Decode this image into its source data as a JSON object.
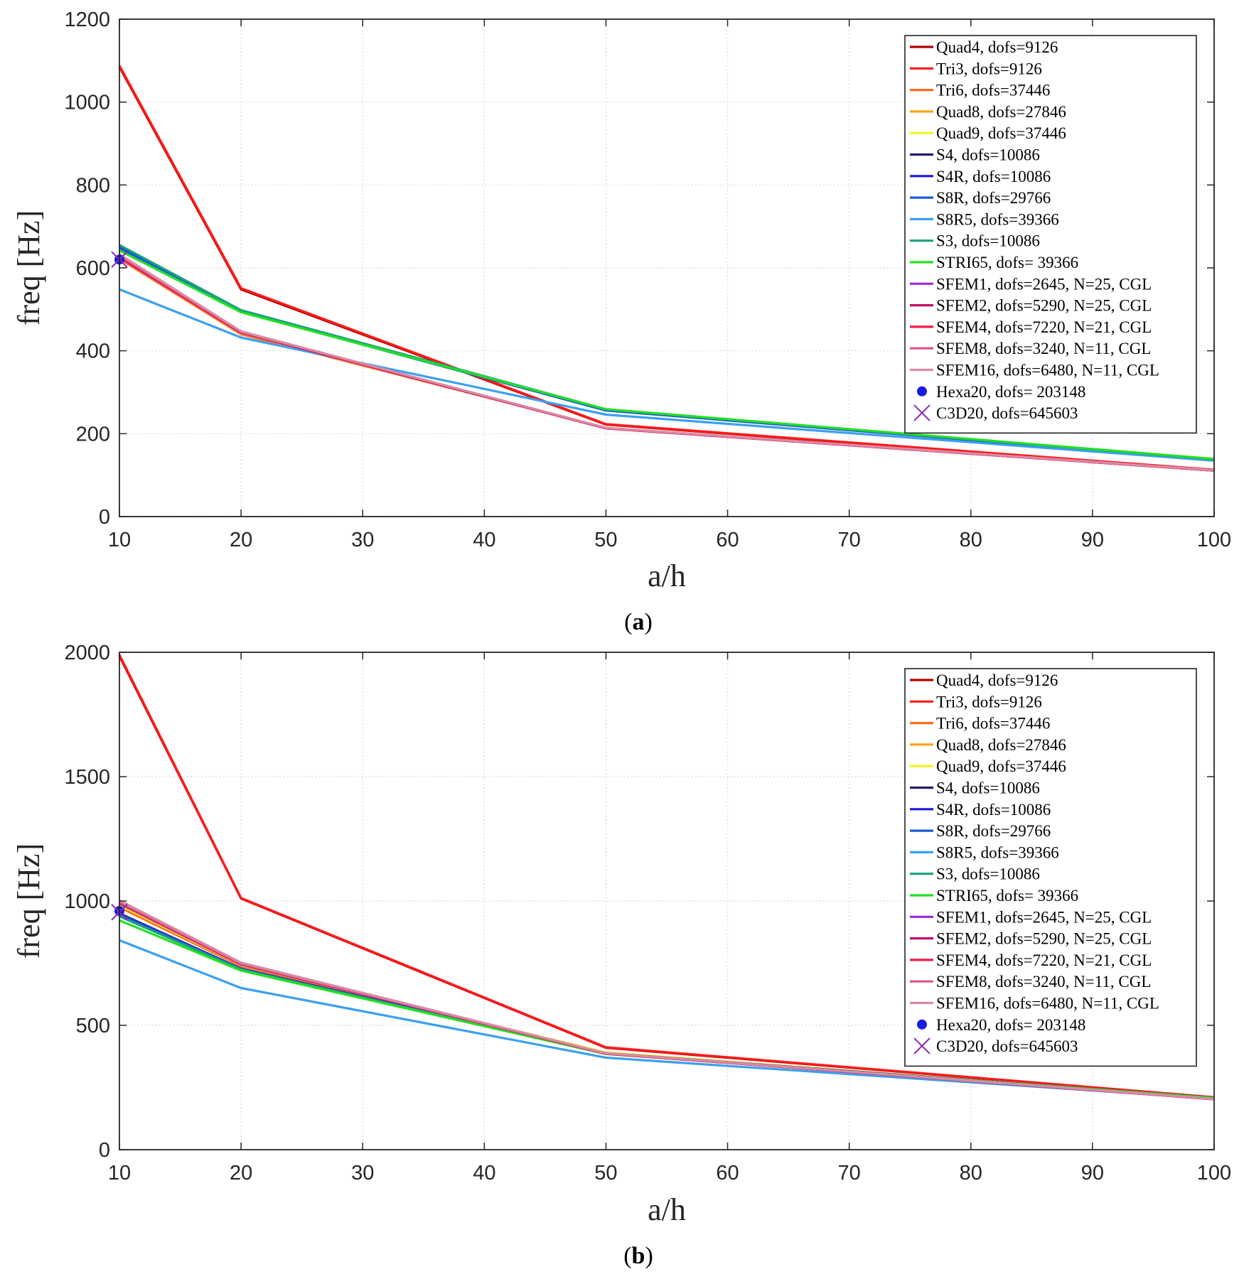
{
  "series_styles": [
    {
      "name": "Quad4, dofs=9126",
      "color": "#b00000",
      "kind": "line"
    },
    {
      "name": "Tri3, dofs=9126",
      "color": "#ff1a1a",
      "kind": "line"
    },
    {
      "name": "Tri6, dofs=37446",
      "color": "#ff6a1a",
      "kind": "line"
    },
    {
      "name": "Quad8, dofs=27846",
      "color": "#ffa51a",
      "kind": "line"
    },
    {
      "name": "Quad9, dofs=37446",
      "color": "#f2f21a",
      "kind": "line"
    },
    {
      "name": "S4, dofs=10086",
      "color": "#2a1a6e",
      "kind": "line"
    },
    {
      "name": "S4R, dofs=10086",
      "color": "#1a1ad6",
      "kind": "line"
    },
    {
      "name": "S8R, dofs=29766",
      "color": "#1a5ad6",
      "kind": "line"
    },
    {
      "name": "S8R5, dofs=39366",
      "color": "#3aa0f0",
      "kind": "line"
    },
    {
      "name": "S3, dofs=10086",
      "color": "#1aa080",
      "kind": "line"
    },
    {
      "name": "STRI65, dofs= 39366",
      "color": "#22e022",
      "kind": "line"
    },
    {
      "name": "SFEM1, dofs=2645, N=25, CGL",
      "color": "#9a2ad6",
      "kind": "line"
    },
    {
      "name": "SFEM2, dofs=5290, N=25, CGL",
      "color": "#c0106a",
      "kind": "line"
    },
    {
      "name": "SFEM4, dofs=7220, N=21, CGL",
      "color": "#f01a4a",
      "kind": "line"
    },
    {
      "name": "SFEM8, dofs=3240, N=11, CGL",
      "color": "#e0508a",
      "kind": "line"
    },
    {
      "name": "SFEM16, dofs=6480, N=11, CGL",
      "color": "#d88aa6",
      "kind": "line"
    },
    {
      "name": "Hexa20, dofs= 203148",
      "color": "#1a1ae0",
      "kind": "dot"
    },
    {
      "name": "C3D20, dofs=645603",
      "color": "#8a2ab0",
      "kind": "cross"
    }
  ],
  "chart_data": [
    {
      "type": "line",
      "caption_letter": "a",
      "title": "",
      "xlabel": "a/h",
      "ylabel": "freq [Hz]",
      "xlim": [
        10,
        100
      ],
      "ylim": [
        0,
        1200
      ],
      "xticks": [
        10,
        20,
        30,
        40,
        50,
        60,
        70,
        80,
        90,
        100
      ],
      "yticks": [
        0,
        200,
        400,
        600,
        800,
        1000,
        1200
      ],
      "grid": true,
      "legend_position": "top-right",
      "x": [
        10,
        20,
        50,
        100
      ],
      "series": [
        {
          "name": "Quad4, dofs=9126",
          "values": [
            1085,
            548,
            222,
            112
          ]
        },
        {
          "name": "Tri3, dofs=9126",
          "values": [
            1088,
            551,
            223,
            113
          ]
        },
        {
          "name": "Tri6, dofs=37446",
          "values": [
            622,
            440,
            214,
            111
          ]
        },
        {
          "name": "Quad8, dofs=27846",
          "values": [
            630,
            443,
            214,
            111
          ]
        },
        {
          "name": "Quad9, dofs=37446",
          "values": [
            632,
            444,
            214,
            111
          ]
        },
        {
          "name": "S4, dofs=10086",
          "values": [
            652,
            496,
            258,
            138
          ]
        },
        {
          "name": "S4R, dofs=10086",
          "values": [
            650,
            495,
            257,
            137
          ]
        },
        {
          "name": "S8R, dofs=29766",
          "values": [
            648,
            494,
            256,
            137
          ]
        },
        {
          "name": "S8R5, dofs=39366",
          "values": [
            548,
            432,
            246,
            135
          ]
        },
        {
          "name": "S3, dofs=10086",
          "values": [
            655,
            498,
            259,
            138
          ]
        },
        {
          "name": "STRI65, dofs= 39366",
          "values": [
            642,
            493,
            259,
            139
          ]
        },
        {
          "name": "SFEM1, dofs=2645, N=25, CGL",
          "values": [
            626,
            444,
            213,
            111
          ]
        },
        {
          "name": "SFEM2, dofs=5290, N=25, CGL",
          "values": [
            627,
            444,
            213,
            111
          ]
        },
        {
          "name": "SFEM4, dofs=7220, N=21, CGL",
          "values": [
            628,
            445,
            213,
            111
          ]
        },
        {
          "name": "SFEM8, dofs=3240, N=11, CGL",
          "values": [
            630,
            446,
            214,
            111
          ]
        },
        {
          "name": "SFEM16, dofs=6480, N=11, CGL",
          "values": [
            633,
            447,
            214,
            112
          ]
        },
        {
          "name": "Hexa20, dofs= 203148",
          "points": [
            [
              10,
              620
            ]
          ]
        },
        {
          "name": "C3D20, dofs=645603",
          "points": [
            [
              10,
              620
            ]
          ]
        }
      ]
    },
    {
      "type": "line",
      "caption_letter": "b",
      "title": "",
      "xlabel": "a/h",
      "ylabel": "freq [Hz]",
      "xlim": [
        10,
        100
      ],
      "ylim": [
        0,
        2000
      ],
      "xticks": [
        10,
        20,
        30,
        40,
        50,
        60,
        70,
        80,
        90,
        100
      ],
      "yticks": [
        0,
        500,
        1000,
        1500,
        2000
      ],
      "grid": true,
      "legend_position": "top-right",
      "x": [
        10,
        20,
        50,
        100
      ],
      "series": [
        {
          "name": "Quad4, dofs=9126",
          "values": [
            1985,
            1010,
            410,
            210
          ]
        },
        {
          "name": "Tri3, dofs=9126",
          "values": [
            1990,
            1012,
            412,
            211
          ]
        },
        {
          "name": "Tri6, dofs=37446",
          "values": [
            975,
            738,
            390,
            207
          ]
        },
        {
          "name": "Quad8, dofs=27846",
          "values": [
            982,
            742,
            390,
            207
          ]
        },
        {
          "name": "Quad9, dofs=37446",
          "values": [
            985,
            744,
            391,
            207
          ]
        },
        {
          "name": "S4, dofs=10086",
          "values": [
            950,
            728,
            388,
            208
          ]
        },
        {
          "name": "S4R, dofs=10086",
          "values": [
            948,
            727,
            387,
            208
          ]
        },
        {
          "name": "S8R, dofs=29766",
          "values": [
            945,
            726,
            386,
            208
          ]
        },
        {
          "name": "S8R5, dofs=39366",
          "values": [
            842,
            650,
            370,
            205
          ]
        },
        {
          "name": "S3, dofs=10086",
          "values": [
            938,
            725,
            386,
            208
          ]
        },
        {
          "name": "STRI65, dofs= 39366",
          "values": [
            922,
            720,
            385,
            208
          ]
        },
        {
          "name": "SFEM1, dofs=2645, N=25, CGL",
          "values": [
            990,
            745,
            386,
            203
          ]
        },
        {
          "name": "SFEM2, dofs=5290, N=25, CGL",
          "values": [
            992,
            746,
            386,
            203
          ]
        },
        {
          "name": "SFEM4, dofs=7220, N=21, CGL",
          "values": [
            994,
            747,
            386,
            203
          ]
        },
        {
          "name": "SFEM8, dofs=3240, N=11, CGL",
          "values": [
            996,
            748,
            387,
            203
          ]
        },
        {
          "name": "SFEM16, dofs=6480, N=11, CGL",
          "values": [
            1002,
            752,
            388,
            204
          ]
        },
        {
          "name": "Hexa20, dofs= 203148",
          "points": [
            [
              10,
              960
            ]
          ]
        },
        {
          "name": "C3D20, dofs=645603",
          "points": [
            [
              10,
              955
            ]
          ]
        }
      ]
    }
  ]
}
